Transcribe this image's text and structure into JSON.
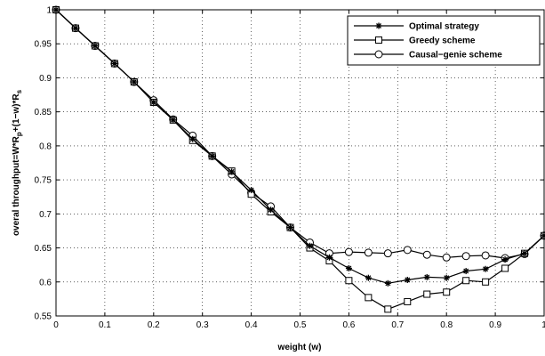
{
  "chart_data": {
    "type": "line",
    "title": "",
    "xlabel": "weight (w)",
    "ylabel_parts": {
      "main": "overal throughput=W*R",
      "sub1": "p",
      "mid": "+(1−w)*R",
      "sub2": "s"
    },
    "xlim": [
      0,
      1
    ],
    "ylim": [
      0.55,
      1
    ],
    "xticks": [
      "0",
      "0.1",
      "0.2",
      "0.3",
      "0.4",
      "0.5",
      "0.6",
      "0.7",
      "0.8",
      "0.9",
      "1"
    ],
    "yticks": [
      "0.55",
      "0.6",
      "0.65",
      "0.7",
      "0.75",
      "0.8",
      "0.85",
      "0.9",
      "0.95",
      "1"
    ],
    "grid": true,
    "legend_position": "top-right",
    "x": [
      0,
      0.04,
      0.08,
      0.12,
      0.16,
      0.2,
      0.24,
      0.28,
      0.32,
      0.36,
      0.4,
      0.44,
      0.48,
      0.52,
      0.56,
      0.6,
      0.64,
      0.68,
      0.72,
      0.76,
      0.8,
      0.84,
      0.88,
      0.92,
      0.96,
      1
    ],
    "series": [
      {
        "name": "Optimal strategy",
        "marker": "star",
        "values": [
          1.0,
          0.973,
          0.947,
          0.921,
          0.894,
          0.864,
          0.838,
          0.81,
          0.785,
          0.762,
          0.735,
          0.706,
          0.68,
          0.653,
          0.636,
          0.62,
          0.606,
          0.598,
          0.603,
          0.607,
          0.606,
          0.616,
          0.619,
          0.633,
          0.642,
          0.668
        ]
      },
      {
        "name": "Greedy scheme",
        "marker": "square",
        "values": [
          1.0,
          0.973,
          0.947,
          0.921,
          0.894,
          0.864,
          0.838,
          0.808,
          0.785,
          0.763,
          0.729,
          0.703,
          0.68,
          0.65,
          0.631,
          0.602,
          0.577,
          0.56,
          0.571,
          0.582,
          0.585,
          0.602,
          0.6,
          0.62,
          0.642,
          0.668
        ]
      },
      {
        "name": "Causal−genie scheme",
        "marker": "circle",
        "values": [
          1.0,
          0.973,
          0.947,
          0.921,
          0.894,
          0.867,
          0.839,
          0.815,
          0.785,
          0.758,
          0.731,
          0.711,
          0.68,
          0.658,
          0.642,
          0.644,
          0.643,
          0.642,
          0.647,
          0.64,
          0.636,
          0.638,
          0.639,
          0.635,
          0.641,
          0.668
        ]
      }
    ]
  }
}
